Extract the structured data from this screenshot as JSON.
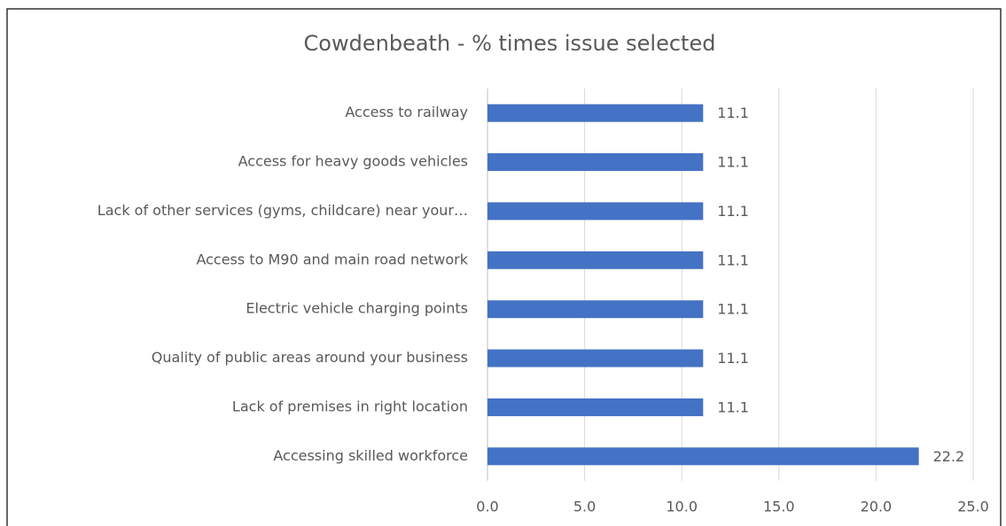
{
  "chart_data": {
    "type": "bar",
    "orientation": "horizontal",
    "title": "Cowdenbeath  - % times issue selected",
    "categories": [
      "Access to railway",
      "Access for heavy goods vehicles",
      "Lack of other services (gyms, childcare) near your…",
      "Access to M90 and main road network",
      "Electric vehicle charging points",
      "Quality of public areas around your business",
      "Lack of premises in right location",
      "Accessing skilled workforce"
    ],
    "values": [
      11.1,
      11.1,
      11.1,
      11.1,
      11.1,
      11.1,
      11.1,
      22.2
    ],
    "color": "#4472c4",
    "xlim": [
      0,
      25
    ],
    "xticks": [
      {
        "value": 0,
        "label": "0.0"
      },
      {
        "value": 5,
        "label": "5.0"
      },
      {
        "value": 10,
        "label": "10.0"
      },
      {
        "value": 15,
        "label": "15.0"
      },
      {
        "value": 20,
        "label": "20.0"
      },
      {
        "value": 25,
        "label": "25.0"
      }
    ],
    "grid": true
  }
}
